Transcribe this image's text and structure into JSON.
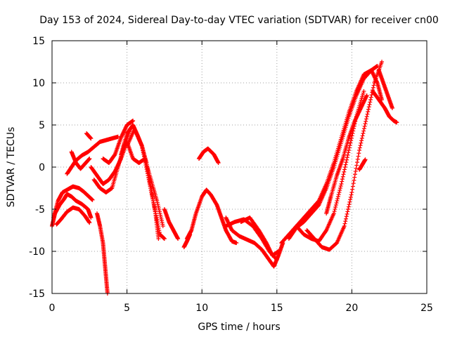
{
  "chart_data": {
    "type": "scatter",
    "title": "Day 153 of 2024, Sidereal Day-to-day VTEC variation (SDTVAR) for receiver cn00",
    "xlabel": "GPS time / hours",
    "ylabel": "SDTVAR / TECUs",
    "xlim": [
      0,
      25
    ],
    "ylim": [
      -15,
      15
    ],
    "xticks": [
      0,
      5,
      10,
      15,
      20,
      25
    ],
    "yticks": [
      -15,
      -10,
      -5,
      0,
      5,
      10,
      15
    ],
    "grid": true,
    "marker": "+",
    "color": "#ff0000",
    "series": [
      {
        "name": "s1",
        "x": [
          0.0,
          0.2,
          0.5,
          0.8,
          1.0,
          1.3,
          1.6,
          2.0,
          2.4,
          2.6
        ],
        "y": [
          -7.0,
          -5.5,
          -4.5,
          -3.8,
          -3.2,
          -3.5,
          -4.0,
          -4.4,
          -5.0,
          -6.0
        ]
      },
      {
        "name": "s2",
        "x": [
          0.1,
          0.4,
          0.7,
          1.1,
          1.4,
          1.8,
          2.1,
          2.4,
          2.7
        ],
        "y": [
          -6.0,
          -4.0,
          -3.0,
          -2.6,
          -2.3,
          -2.5,
          -2.9,
          -3.4,
          -3.9
        ]
      },
      {
        "name": "s3",
        "x": [
          0.3,
          0.6,
          1.0,
          1.4,
          1.8,
          2.2,
          2.5
        ],
        "y": [
          -6.8,
          -6.2,
          -5.3,
          -4.8,
          -5.0,
          -5.8,
          -6.6
        ]
      },
      {
        "name": "s4",
        "x": [
          1.0,
          1.3,
          1.6,
          2.0,
          2.4,
          2.8,
          3.2,
          3.6,
          4.0,
          4.4
        ],
        "y": [
          -0.8,
          0.0,
          0.8,
          1.4,
          1.8,
          2.4,
          3.0,
          3.2,
          3.4,
          3.6
        ]
      },
      {
        "name": "s5",
        "x": [
          1.3,
          1.6,
          1.9,
          2.2,
          2.5
        ],
        "y": [
          1.8,
          0.5,
          -0.2,
          0.4,
          1.0
        ]
      },
      {
        "name": "s6",
        "x": [
          2.3,
          2.6
        ],
        "y": [
          4.0,
          3.4
        ]
      },
      {
        "name": "s7",
        "x": [
          3.0,
          3.2,
          3.4,
          3.5,
          3.6,
          3.7
        ],
        "y": [
          -5.5,
          -7.0,
          -9.0,
          -11.0,
          -13.0,
          -15.0
        ]
      },
      {
        "name": "s8",
        "x": [
          2.6,
          3.0,
          3.4,
          3.8,
          4.2,
          4.6,
          5.0
        ],
        "y": [
          0.0,
          -1.0,
          -2.0,
          -1.5,
          -0.5,
          1.0,
          3.0
        ]
      },
      {
        "name": "s9",
        "x": [
          2.8,
          3.2,
          3.6,
          4.0,
          4.4,
          4.8,
          5.2
        ],
        "y": [
          -1.5,
          -2.5,
          -3.0,
          -2.5,
          0.0,
          2.5,
          4.5
        ]
      },
      {
        "name": "s10",
        "x": [
          3.4,
          3.8,
          4.2,
          4.6,
          5.0,
          5.4
        ],
        "y": [
          1.0,
          0.5,
          1.5,
          3.5,
          5.0,
          5.5
        ]
      },
      {
        "name": "s11",
        "x": [
          4.6,
          5.0,
          5.4,
          5.7,
          6.0,
          6.3,
          6.6,
          6.9,
          7.1
        ],
        "y": [
          1.5,
          4.0,
          5.0,
          3.8,
          2.5,
          0.5,
          -2.5,
          -5.5,
          -8.5
        ]
      },
      {
        "name": "s12",
        "x": [
          5.0,
          5.4,
          5.8,
          6.2,
          6.6,
          7.0,
          7.4
        ],
        "y": [
          3.0,
          1.0,
          0.5,
          1.0,
          -1.5,
          -4.0,
          -7.0
        ]
      },
      {
        "name": "s13",
        "x": [
          5.0,
          5.5,
          6.0,
          6.4,
          6.8,
          7.2,
          7.5
        ],
        "y": [
          2.5,
          4.5,
          2.5,
          -1.0,
          -4.5,
          -8.0,
          -8.5
        ]
      },
      {
        "name": "s14",
        "x": [
          7.5,
          7.8,
          8.1,
          8.4
        ],
        "y": [
          -5.0,
          -6.5,
          -7.5,
          -8.5
        ]
      },
      {
        "name": "s15",
        "x": [
          8.8,
          9.0,
          9.2
        ],
        "y": [
          -9.5,
          -8.8,
          -8.0
        ]
      },
      {
        "name": "s16",
        "x": [
          9.0,
          9.3,
          9.6,
          10.0,
          10.3,
          10.6,
          11.0,
          11.3,
          11.6,
          12.0,
          12.3
        ],
        "y": [
          -8.5,
          -7.5,
          -5.5,
          -3.5,
          -2.7,
          -3.3,
          -4.5,
          -6.0,
          -7.5,
          -8.8,
          -9.0
        ]
      },
      {
        "name": "s17",
        "x": [
          9.8,
          10.1,
          10.4,
          10.8,
          11.1
        ],
        "y": [
          1.0,
          1.8,
          2.2,
          1.5,
          0.5
        ]
      },
      {
        "name": "s18",
        "x": [
          11.6,
          12.0,
          12.5,
          13.0,
          13.5,
          14.0,
          14.4,
          14.8,
          15.1,
          15.4
        ],
        "y": [
          -6.0,
          -7.5,
          -8.2,
          -8.6,
          -9.0,
          -9.8,
          -10.8,
          -11.8,
          -10.5,
          -9.0
        ]
      },
      {
        "name": "s19",
        "x": [
          11.6,
          12.2,
          12.8,
          13.4,
          14.0,
          14.5,
          15.0
        ],
        "y": [
          -7.0,
          -6.5,
          -6.2,
          -7.0,
          -8.5,
          -10.0,
          -11.0
        ]
      },
      {
        "name": "s20",
        "x": [
          12.6,
          13.2,
          13.8,
          14.3,
          14.7,
          15.1
        ],
        "y": [
          -6.5,
          -6.0,
          -7.5,
          -9.0,
          -10.5,
          -10.0
        ]
      },
      {
        "name": "s21",
        "x": [
          15.3,
          15.8,
          16.3,
          16.8,
          17.3,
          17.8,
          18.3,
          18.8,
          19.3,
          19.8,
          20.3,
          20.8,
          21.3,
          21.7,
          22.0
        ],
        "y": [
          -9.0,
          -8.0,
          -7.0,
          -6.0,
          -5.0,
          -4.0,
          -2.0,
          0.5,
          3.5,
          6.5,
          9.0,
          11.0,
          11.5,
          10.0,
          8.0
        ]
      },
      {
        "name": "s22",
        "x": [
          15.8,
          16.3,
          16.8,
          17.3,
          17.8,
          18.3,
          18.8,
          19.3,
          19.8,
          20.3,
          20.8,
          21.3,
          21.7
        ],
        "y": [
          -8.5,
          -7.2,
          -6.5,
          -5.5,
          -4.5,
          -2.5,
          0.0,
          3.0,
          6.0,
          8.5,
          10.5,
          11.5,
          12.0
        ]
      },
      {
        "name": "s23",
        "x": [
          16.3,
          16.8,
          17.3,
          17.8,
          18.3,
          18.8,
          19.3,
          19.8,
          20.3,
          20.8
        ],
        "y": [
          -7.0,
          -8.0,
          -8.5,
          -8.8,
          -7.5,
          -5.5,
          -2.0,
          2.0,
          6.0,
          9.0
        ]
      },
      {
        "name": "s24",
        "x": [
          17.0,
          17.5,
          18.0,
          18.5,
          19.0,
          19.5,
          20.0,
          20.5,
          21.0,
          21.5,
          22.0
        ],
        "y": [
          -7.5,
          -8.5,
          -9.5,
          -9.8,
          -9.0,
          -7.0,
          -3.0,
          2.0,
          6.0,
          10.0,
          12.5
        ]
      },
      {
        "name": "s25",
        "x": [
          18.3,
          18.6,
          19.0,
          19.4,
          19.8,
          20.2,
          20.6,
          21.0
        ],
        "y": [
          -5.5,
          -3.5,
          -1.0,
          1.0,
          3.5,
          5.5,
          7.0,
          8.5
        ]
      },
      {
        "name": "s26",
        "x": [
          20.5,
          20.7,
          20.9
        ],
        "y": [
          -0.3,
          0.3,
          0.9
        ]
      },
      {
        "name": "s27",
        "x": [
          21.4,
          21.8,
          22.2,
          22.5,
          22.8,
          23.0
        ],
        "y": [
          9.0,
          8.0,
          7.0,
          6.0,
          5.5,
          5.3
        ]
      },
      {
        "name": "s28",
        "x": [
          21.8,
          22.1,
          22.4,
          22.7
        ],
        "y": [
          11.5,
          10.0,
          8.5,
          7.0
        ]
      }
    ]
  }
}
